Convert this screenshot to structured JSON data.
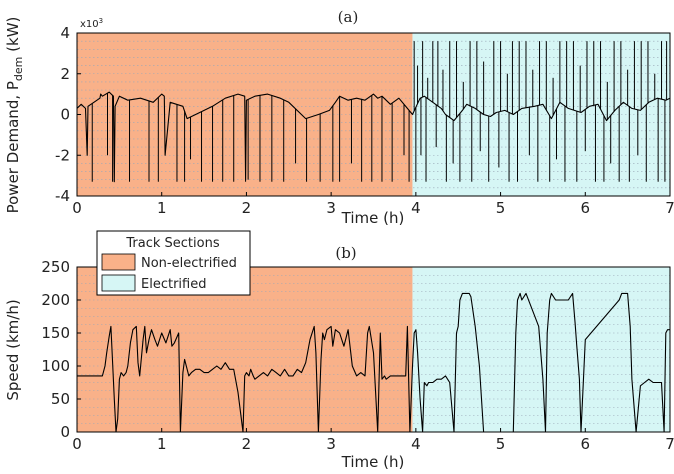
{
  "colors": {
    "non_electrified": "#f9b189",
    "electrified": "#d6f6f5",
    "trace": "#000000",
    "grid": "#9aa8b8"
  },
  "chart_data": [
    {
      "type": "line",
      "panel_label": "(a)",
      "xlabel": "Time (h)",
      "ylabel_main": "Power Demand, P",
      "ylabel_sub": "dem",
      "ylabel_unit": " (kW)",
      "y_exponent_base": "x10",
      "y_exponent_power": "3",
      "xlim": [
        0,
        7
      ],
      "ylim": [
        -4,
        4
      ],
      "x_ticks": [
        "0",
        "1",
        "2",
        "3",
        "4",
        "5",
        "6",
        "7"
      ],
      "y_ticks": [
        "-4",
        "-2",
        "0",
        "2",
        "4"
      ],
      "y_tick_values": [
        -4,
        -2,
        0,
        2,
        4
      ],
      "y_grid_step": 0.4,
      "grid": "dotted-horizontal",
      "regions": [
        {
          "name": "Non-electrified",
          "x_start": 0,
          "x_end": 3.96
        },
        {
          "name": "Electrified",
          "x_start": 3.96,
          "x_end": 7
        }
      ],
      "series": [
        {
          "x": [
            0,
            0.05,
            0.1,
            0.12,
            0.13,
            0.2,
            0.27,
            0.28,
            0.3,
            0.38,
            0.43,
            0.44,
            0.45,
            0.5,
            0.6,
            0.75,
            0.9,
            1.0,
            1.03,
            1.04,
            1.1,
            1.25,
            1.3,
            1.4,
            1.5,
            1.6,
            1.75,
            1.9,
            1.98,
            1.99,
            2.0,
            2.1,
            2.25,
            2.4,
            2.5,
            2.7,
            2.85,
            2.98,
            3.05,
            3.1,
            3.2,
            3.3,
            3.4,
            3.5,
            3.55,
            3.6,
            3.7,
            3.8,
            3.9,
            3.96,
            4.05,
            4.1,
            4.2,
            4.3,
            4.35,
            4.45,
            4.55,
            4.6,
            4.7,
            4.8,
            4.88,
            4.95,
            5.05,
            5.15,
            5.25,
            5.4,
            5.5,
            5.6,
            5.7,
            5.8,
            5.95,
            6.05,
            6.15,
            6.25,
            6.35,
            6.45,
            6.55,
            6.65,
            6.75,
            6.85,
            6.95,
            7.0
          ],
          "y": [
            0.3,
            0.5,
            0.3,
            -2.0,
            0.4,
            0.6,
            0.8,
            1.0,
            0.9,
            1.1,
            0.9,
            -3.3,
            0.4,
            0.9,
            0.7,
            0.8,
            0.6,
            1.0,
            0.9,
            -2.0,
            0.6,
            0.4,
            -0.2,
            0.0,
            0.2,
            0.4,
            0.8,
            1.0,
            0.9,
            -3.2,
            0.7,
            0.9,
            1.0,
            0.8,
            0.6,
            -0.2,
            0.0,
            0.2,
            0.6,
            0.9,
            0.7,
            0.8,
            0.7,
            1.0,
            0.8,
            0.9,
            0.5,
            0.8,
            0.3,
            0.0,
            0.8,
            0.9,
            0.6,
            0.3,
            0.0,
            -0.3,
            0.2,
            0.5,
            0.3,
            0.0,
            -0.1,
            0.1,
            0.2,
            0.0,
            0.3,
            0.4,
            0.5,
            -0.2,
            0.6,
            0.3,
            0.1,
            0.4,
            0.5,
            -0.3,
            0.2,
            0.6,
            0.3,
            0.2,
            0.6,
            0.8,
            0.7,
            0.8
          ]
        }
      ],
      "spike_x": [
        0.12,
        0.18,
        0.36,
        0.42,
        0.44,
        0.62,
        0.85,
        0.96,
        1.04,
        1.18,
        1.27,
        1.34,
        1.47,
        1.6,
        1.72,
        1.85,
        1.99,
        2.02,
        2.16,
        2.3,
        2.44,
        2.58,
        2.71,
        2.87,
        3.02,
        3.1,
        3.24,
        3.36,
        3.48,
        3.6,
        3.72,
        3.86,
        3.92
      ],
      "spike_y": [
        -2,
        -3.3,
        -2,
        -3.3,
        -3.3,
        -3.3,
        -3.3,
        -3.3,
        -2,
        -3.3,
        -3.3,
        -2.2,
        -3.3,
        -3.3,
        -3.3,
        -3.3,
        -3.3,
        -3.2,
        -3.3,
        -3.3,
        -3.3,
        -2.4,
        -3.3,
        -3.3,
        -3.3,
        -3.3,
        -2.4,
        -3.3,
        -3.3,
        -3.3,
        -3.3,
        -2.0,
        -3.3
      ],
      "spike_up_x": [
        3.98,
        4.02,
        4.08,
        4.14,
        4.2,
        4.26,
        4.32,
        4.4,
        4.48,
        4.56,
        4.64,
        4.72,
        4.8,
        4.92,
        5.0,
        5.08,
        5.14,
        5.22,
        5.3,
        5.38,
        5.46,
        5.54,
        5.62,
        5.7,
        5.78,
        5.86,
        5.94,
        6.02,
        6.1,
        6.18,
        6.26,
        6.34,
        6.42,
        6.5,
        6.58,
        6.66,
        6.74,
        6.82,
        6.9,
        6.96
      ],
      "spike_up_y": [
        3.6,
        2.4,
        3.6,
        1.8,
        3.6,
        3.6,
        2.2,
        3.6,
        3.6,
        1.6,
        3.6,
        3.6,
        2.6,
        3.6,
        3.6,
        2.0,
        3.6,
        3.6,
        3.6,
        2.2,
        3.6,
        3.6,
        1.8,
        3.6,
        3.6,
        3.6,
        2.4,
        3.6,
        3.6,
        3.6,
        1.6,
        3.6,
        3.6,
        2.2,
        3.6,
        3.6,
        3.6,
        2.0,
        3.6,
        3.6
      ],
      "spike_down_x": [
        4.0,
        4.06,
        4.12,
        4.24,
        4.36,
        4.44,
        4.52,
        4.66,
        4.76,
        4.86,
        4.98,
        5.1,
        5.2,
        5.34,
        5.44,
        5.58,
        5.66,
        5.76,
        5.9,
        6.0,
        6.12,
        6.22,
        6.3,
        6.4,
        6.52,
        6.62,
        6.72,
        6.86,
        6.94
      ],
      "spike_down_y": [
        -3.3,
        -2.0,
        -3.3,
        -1.6,
        -3.3,
        -2.4,
        -3.3,
        -3.3,
        -1.8,
        -3.3,
        -2.6,
        -3.3,
        -3.3,
        -2.0,
        -3.3,
        -3.3,
        -2.2,
        -3.3,
        -3.3,
        -1.8,
        -3.3,
        -3.3,
        -2.4,
        -3.3,
        -3.3,
        -2.0,
        -3.3,
        -3.3,
        -3.3
      ]
    },
    {
      "type": "line",
      "panel_label": "(b)",
      "xlabel": "Time (h)",
      "ylabel": "Speed (km/h)",
      "xlim": [
        0,
        7
      ],
      "ylim": [
        0,
        250
      ],
      "x_ticks": [
        "0",
        "1",
        "2",
        "3",
        "4",
        "5",
        "6",
        "7"
      ],
      "y_ticks": [
        "0",
        "50",
        "100",
        "150",
        "200",
        "250"
      ],
      "y_tick_values": [
        0,
        50,
        100,
        150,
        200,
        250
      ],
      "y_grid_step": 12.5,
      "grid": "dotted-horizontal",
      "legend": {
        "title": "Track Sections",
        "position": "top-left",
        "entries": [
          {
            "label": "Non-electrified",
            "color_key": "non_electrified"
          },
          {
            "label": "Electrified",
            "color_key": "electrified"
          }
        ]
      },
      "series": [
        {
          "x": [
            0,
            0.02,
            0.05,
            0.3,
            0.33,
            0.35,
            0.38,
            0.4,
            0.44,
            0.46,
            0.48,
            0.5,
            0.52,
            0.55,
            0.58,
            0.6,
            0.63,
            0.66,
            0.7,
            0.72,
            0.74,
            0.78,
            0.8,
            0.82,
            0.85,
            0.88,
            0.92,
            0.95,
            1.0,
            1.05,
            1.1,
            1.12,
            1.15,
            1.2,
            1.22,
            1.25,
            1.27,
            1.29,
            1.32,
            1.35,
            1.4,
            1.45,
            1.5,
            1.55,
            1.6,
            1.65,
            1.7,
            1.75,
            1.8,
            1.85,
            1.9,
            1.96,
            1.98,
            2.0,
            2.03,
            2.05,
            2.08,
            2.1,
            2.15,
            2.2,
            2.25,
            2.3,
            2.35,
            2.4,
            2.45,
            2.5,
            2.55,
            2.6,
            2.65,
            2.7,
            2.75,
            2.8,
            2.82,
            2.85,
            2.88,
            2.9,
            2.92,
            2.95,
            3.0,
            3.02,
            3.05,
            3.1,
            3.15,
            3.2,
            3.25,
            3.3,
            3.35,
            3.4,
            3.43,
            3.45,
            3.5,
            3.55,
            3.58,
            3.6,
            3.63,
            3.65,
            3.7,
            3.8,
            3.88,
            3.9,
            3.93,
            3.96,
            3.98,
            4.0,
            4.02,
            4.05,
            4.08,
            4.1,
            4.13,
            4.15,
            4.2,
            4.25,
            4.3,
            4.35,
            4.4,
            4.45,
            4.48,
            4.5,
            4.52,
            4.55,
            4.58,
            4.6,
            4.63,
            4.65,
            4.7,
            4.75,
            4.8,
            5.15,
            5.18,
            5.2,
            5.23,
            5.25,
            5.3,
            5.45,
            5.5,
            5.53,
            5.55,
            5.58,
            5.6,
            5.65,
            5.8,
            5.85,
            5.88,
            5.9,
            5.93,
            5.95,
            6.0,
            6.4,
            6.43,
            6.45,
            6.48,
            6.5,
            6.53,
            6.55,
            6.6,
            6.65,
            6.7,
            6.75,
            6.8,
            6.85,
            6.9,
            6.93,
            6.95,
            6.97,
            7.0
          ],
          "y": [
            85,
            85,
            85,
            85,
            100,
            120,
            145,
            160,
            50,
            0,
            20,
            80,
            90,
            85,
            90,
            100,
            135,
            155,
            160,
            105,
            85,
            140,
            160,
            120,
            140,
            155,
            140,
            130,
            150,
            135,
            155,
            130,
            135,
            150,
            0,
            90,
            110,
            100,
            85,
            90,
            95,
            95,
            90,
            90,
            95,
            100,
            95,
            105,
            95,
            95,
            60,
            0,
            85,
            90,
            85,
            95,
            85,
            80,
            85,
            90,
            85,
            95,
            90,
            85,
            95,
            85,
            85,
            95,
            90,
            105,
            140,
            160,
            120,
            0,
            110,
            150,
            140,
            155,
            160,
            130,
            155,
            150,
            130,
            155,
            100,
            85,
            90,
            85,
            150,
            160,
            120,
            0,
            150,
            80,
            85,
            80,
            85,
            85,
            85,
            160,
            0,
            100,
            150,
            155,
            120,
            50,
            0,
            75,
            70,
            75,
            75,
            80,
            80,
            85,
            75,
            0,
            150,
            160,
            200,
            210,
            210,
            210,
            210,
            205,
            160,
            100,
            0,
            0,
            150,
            200,
            210,
            200,
            210,
            160,
            80,
            0,
            150,
            200,
            210,
            200,
            200,
            210,
            165,
            130,
            80,
            0,
            140,
            200,
            210,
            210,
            210,
            210,
            160,
            80,
            0,
            70,
            75,
            80,
            75,
            75,
            75,
            0,
            150,
            155,
            155
          ]
        }
      ]
    }
  ]
}
